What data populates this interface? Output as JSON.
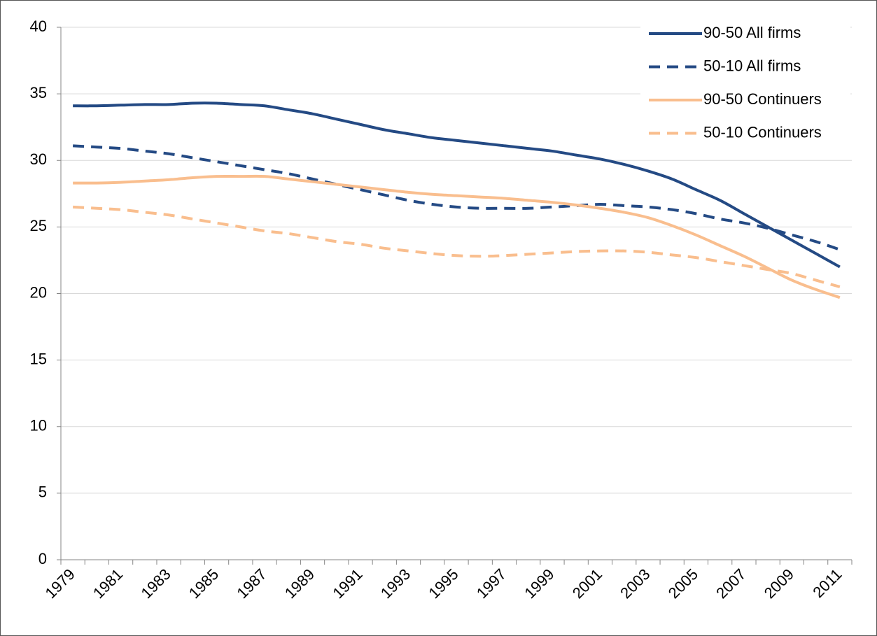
{
  "chart_data": {
    "type": "line",
    "categories": [
      "1979",
      null,
      "1981",
      null,
      "1983",
      null,
      "1985",
      null,
      "1987",
      null,
      "1989",
      null,
      "1991",
      null,
      "1993",
      null,
      "1995",
      null,
      "1997",
      null,
      "1999",
      null,
      "2001",
      null,
      "2003",
      null,
      "2005",
      null,
      "2007",
      null,
      "2009",
      null,
      "2011"
    ],
    "series": [
      {
        "name": "90-50 All firms",
        "color": "#244a84",
        "dashed": false,
        "values": [
          34.1,
          34.1,
          34.15,
          34.2,
          34.2,
          34.3,
          34.3,
          34.2,
          34.1,
          33.8,
          33.5,
          33.1,
          32.7,
          32.3,
          32.0,
          31.7,
          31.5,
          31.3,
          31.1,
          30.9,
          30.7,
          30.4,
          30.1,
          29.7,
          29.2,
          28.6,
          27.8,
          27.0,
          26.0,
          25.0,
          24.0,
          23.0,
          22.0
        ]
      },
      {
        "name": "50-10 All firms",
        "color": "#244a84",
        "dashed": true,
        "values": [
          31.1,
          31.0,
          30.9,
          30.7,
          30.5,
          30.2,
          29.9,
          29.6,
          29.3,
          29.0,
          28.6,
          28.2,
          27.8,
          27.4,
          27.0,
          26.7,
          26.5,
          26.4,
          26.4,
          26.4,
          26.5,
          26.6,
          26.7,
          26.6,
          26.5,
          26.3,
          26.0,
          25.6,
          25.3,
          24.9,
          24.4,
          23.9,
          23.3
        ]
      },
      {
        "name": "90-50 Continuers",
        "color": "#f9be8e",
        "dashed": false,
        "values": [
          28.3,
          28.3,
          28.35,
          28.45,
          28.55,
          28.7,
          28.8,
          28.8,
          28.8,
          28.6,
          28.4,
          28.2,
          28.0,
          27.8,
          27.6,
          27.45,
          27.35,
          27.25,
          27.15,
          27.0,
          26.85,
          26.65,
          26.4,
          26.1,
          25.7,
          25.1,
          24.4,
          23.6,
          22.8,
          21.9,
          21.0,
          20.3,
          19.7
        ]
      },
      {
        "name": "50-10 Continuers",
        "color": "#f9be8e",
        "dashed": true,
        "values": [
          26.5,
          26.4,
          26.3,
          26.1,
          25.9,
          25.6,
          25.3,
          25.0,
          24.7,
          24.5,
          24.2,
          23.9,
          23.7,
          23.4,
          23.2,
          23.0,
          22.85,
          22.8,
          22.85,
          22.95,
          23.05,
          23.15,
          23.2,
          23.2,
          23.1,
          22.9,
          22.7,
          22.4,
          22.1,
          21.8,
          21.5,
          21.0,
          20.5
        ]
      }
    ],
    "ylim": [
      0,
      40
    ],
    "yticks": [
      0,
      5,
      10,
      15,
      20,
      25,
      30,
      35,
      40
    ],
    "grid": true,
    "legend": "top-right"
  }
}
